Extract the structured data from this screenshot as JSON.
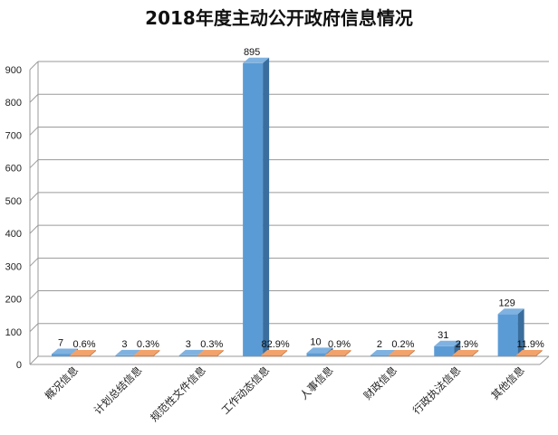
{
  "chart_data": {
    "type": "bar",
    "title": "2018年度主动公开政府信息情况",
    "categories": [
      "概况信息",
      "计划总结信息",
      "规范性文件信息",
      "工作动态信息",
      "人事信息",
      "财政信息",
      "行政执法信息",
      "其他信息"
    ],
    "series": [
      {
        "values": [
          7,
          3,
          3,
          895,
          10,
          2,
          31,
          129
        ],
        "labels": [
          "7",
          "3",
          "3",
          "895",
          "10",
          "2",
          "31",
          "129"
        ]
      },
      {
        "values": [
          0.6,
          0.3,
          0.3,
          82.9,
          0.9,
          0.2,
          2.9,
          11.9
        ],
        "labels": [
          "0.6%",
          "0.3%",
          "0.3%",
          "82.9%",
          "0.9%",
          "0.2%",
          "2.9%",
          "11.9%"
        ]
      }
    ],
    "ylim": [
      0,
      900
    ],
    "yticks": [
      "0",
      "100",
      "200",
      "300",
      "400",
      "500",
      "600",
      "700",
      "800",
      "900"
    ],
    "grid": true,
    "colors": {
      "series1": "#5B9BD5",
      "series2": "#ED7D31"
    }
  }
}
